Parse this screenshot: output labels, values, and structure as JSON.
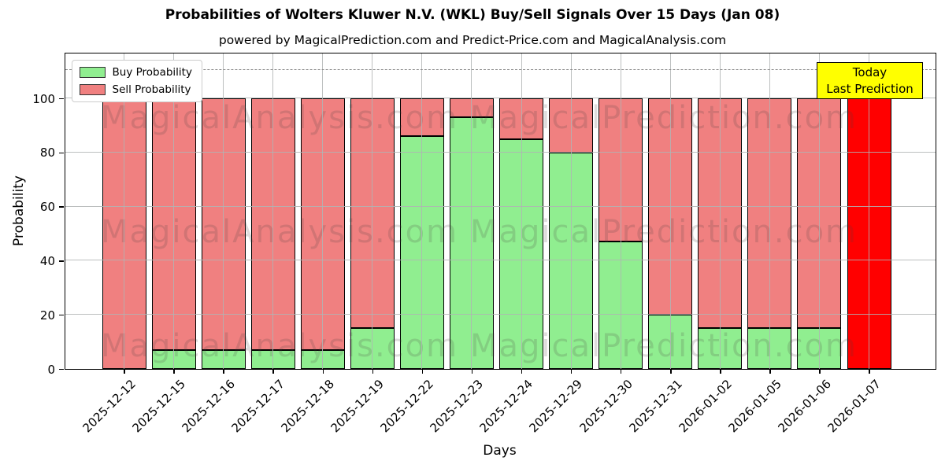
{
  "chart_data": {
    "type": "bar",
    "stacked": true,
    "title": "Probabilities of Wolters Kluwer N.V. (WKL) Buy/Sell Signals Over 15 Days (Jan 08)",
    "subtitle": "powered by MagicalPrediction.com and Predict-Price.com and MagicalAnalysis.com",
    "xlabel": "Days",
    "ylabel": "Probability",
    "categories": [
      "2025-12-12",
      "2025-12-15",
      "2025-12-16",
      "2025-12-17",
      "2025-12-18",
      "2025-12-19",
      "2025-12-22",
      "2025-12-23",
      "2025-12-24",
      "2025-12-29",
      "2025-12-30",
      "2025-12-31",
      "2026-01-02",
      "2026-01-05",
      "2026-01-06",
      "2026-01-07"
    ],
    "series": [
      {
        "name": "Buy Probability",
        "color": "#90EE90",
        "values": [
          0,
          7,
          7,
          7,
          7,
          15,
          86,
          93,
          85,
          80,
          47,
          20,
          15,
          15,
          15,
          0
        ]
      },
      {
        "name": "Sell Probability",
        "color": "#F08080",
        "values": [
          100,
          93,
          93,
          93,
          93,
          85,
          14,
          7,
          15,
          20,
          53,
          80,
          85,
          85,
          85,
          100
        ]
      }
    ],
    "highlight_last_bar": {
      "index": 15,
      "color": "#FF0000"
    },
    "bar_edge_color": "#000000",
    "yticks": [
      0,
      20,
      40,
      60,
      80,
      100
    ],
    "ylim": [
      0,
      116.6
    ],
    "dashed_hline_y": 110.8,
    "grid": true,
    "legend_position": "upper-left",
    "annotation": {
      "lines": [
        "Today",
        "Last Prediction"
      ],
      "bg_color": "#FFFF00"
    },
    "watermark_left_text": "MagicalAnalysis.com",
    "watermark_right_text": "MagicalPrediction.com"
  }
}
